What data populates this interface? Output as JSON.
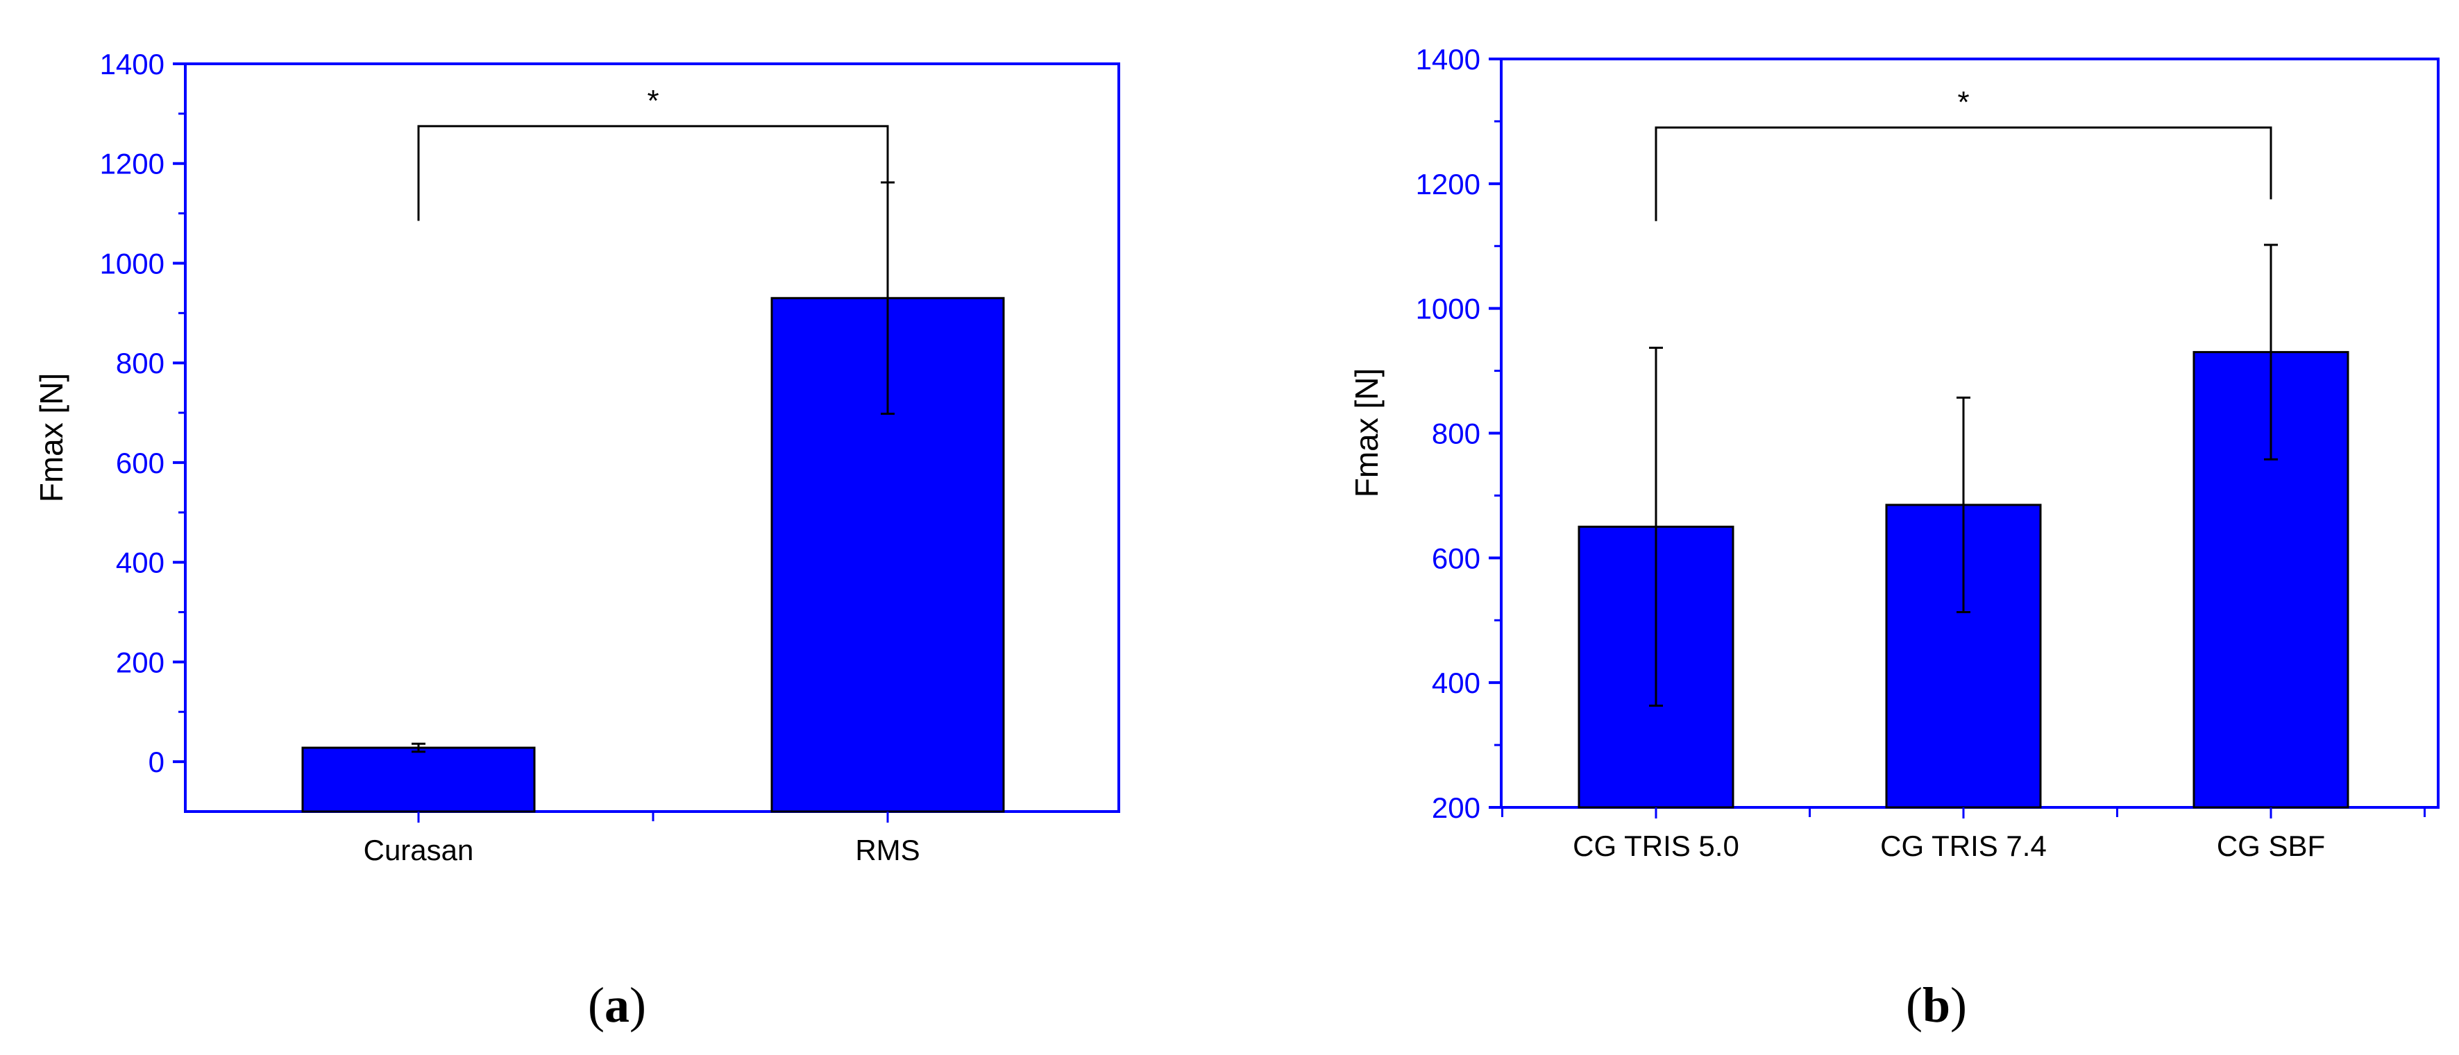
{
  "colors": {
    "bar_fill": "#0000ff",
    "axis": "#0000ff",
    "tick_label": "#0000ff",
    "text": "#000000",
    "background": "#ffffff"
  },
  "chart_data": [
    {
      "type": "bar",
      "caption": "(a)",
      "caption_parts": [
        "(",
        "a",
        ")"
      ],
      "categories": [
        "Curasan",
        "RMS"
      ],
      "values": [
        28,
        930
      ],
      "errors": [
        8,
        232
      ],
      "ylabel": "Fmax [N]",
      "xlabel": "",
      "title": "",
      "ylim": [
        -100,
        1400
      ],
      "yticks": [
        "0",
        "200",
        "400",
        "600",
        "800",
        "1000",
        "1200",
        "1400"
      ],
      "grid": false,
      "significance": {
        "from": 0,
        "to": 1,
        "label": "*",
        "level": 1275,
        "left_drop": 1085,
        "right_drop": 1040
      }
    },
    {
      "type": "bar",
      "caption": "(b)",
      "caption_parts": [
        "(",
        "b",
        ")"
      ],
      "categories": [
        "CG TRIS 5.0",
        "CG TRIS 7.4",
        "CG SBF"
      ],
      "values": [
        650,
        685,
        930
      ],
      "errors": [
        287,
        172,
        172
      ],
      "ylabel": "Fmax [N]",
      "xlabel": "",
      "title": "",
      "ylim": [
        200,
        1400
      ],
      "yticks": [
        "200",
        "400",
        "600",
        "800",
        "1000",
        "1200",
        "1400"
      ],
      "grid": false,
      "significance": {
        "from": 0,
        "to": 2,
        "label": "*",
        "level": 1290,
        "left_drop": 1140,
        "right_drop": 1175
      }
    }
  ]
}
